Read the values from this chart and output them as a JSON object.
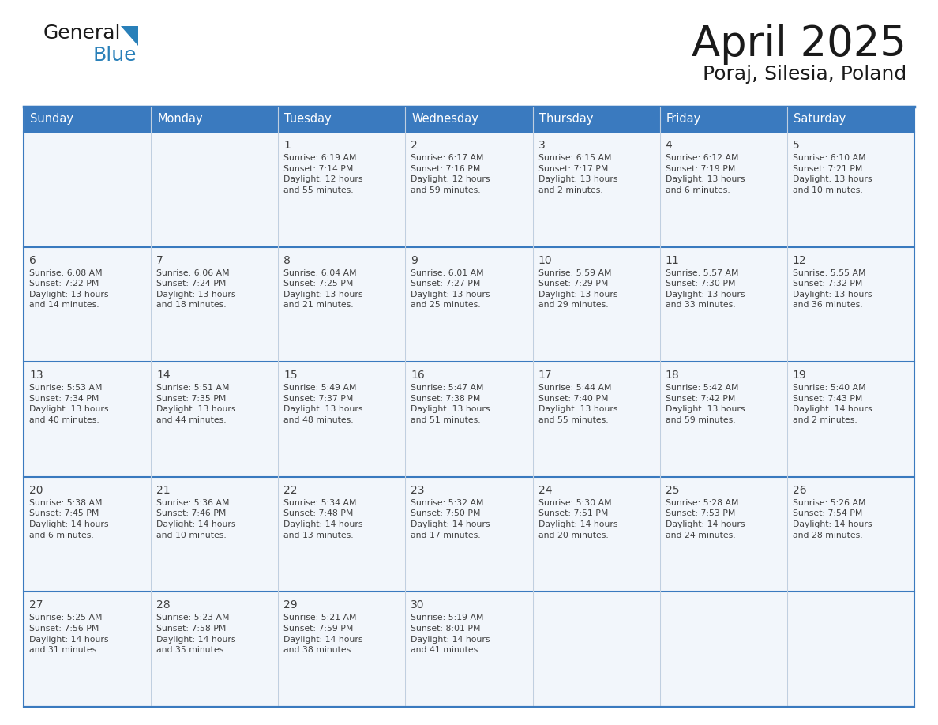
{
  "title": "April 2025",
  "subtitle": "Poraj, Silesia, Poland",
  "header_bg": "#3a7abf",
  "header_text_color": "#ffffff",
  "days_of_week": [
    "Sunday",
    "Monday",
    "Tuesday",
    "Wednesday",
    "Thursday",
    "Friday",
    "Saturday"
  ],
  "cell_bg": "#f2f6fb",
  "border_color": "#3a7abf",
  "text_color": "#404040",
  "calendar": [
    [
      {
        "day": "",
        "info": ""
      },
      {
        "day": "",
        "info": ""
      },
      {
        "day": "1",
        "info": "Sunrise: 6:19 AM\nSunset: 7:14 PM\nDaylight: 12 hours\nand 55 minutes."
      },
      {
        "day": "2",
        "info": "Sunrise: 6:17 AM\nSunset: 7:16 PM\nDaylight: 12 hours\nand 59 minutes."
      },
      {
        "day": "3",
        "info": "Sunrise: 6:15 AM\nSunset: 7:17 PM\nDaylight: 13 hours\nand 2 minutes."
      },
      {
        "day": "4",
        "info": "Sunrise: 6:12 AM\nSunset: 7:19 PM\nDaylight: 13 hours\nand 6 minutes."
      },
      {
        "day": "5",
        "info": "Sunrise: 6:10 AM\nSunset: 7:21 PM\nDaylight: 13 hours\nand 10 minutes."
      }
    ],
    [
      {
        "day": "6",
        "info": "Sunrise: 6:08 AM\nSunset: 7:22 PM\nDaylight: 13 hours\nand 14 minutes."
      },
      {
        "day": "7",
        "info": "Sunrise: 6:06 AM\nSunset: 7:24 PM\nDaylight: 13 hours\nand 18 minutes."
      },
      {
        "day": "8",
        "info": "Sunrise: 6:04 AM\nSunset: 7:25 PM\nDaylight: 13 hours\nand 21 minutes."
      },
      {
        "day": "9",
        "info": "Sunrise: 6:01 AM\nSunset: 7:27 PM\nDaylight: 13 hours\nand 25 minutes."
      },
      {
        "day": "10",
        "info": "Sunrise: 5:59 AM\nSunset: 7:29 PM\nDaylight: 13 hours\nand 29 minutes."
      },
      {
        "day": "11",
        "info": "Sunrise: 5:57 AM\nSunset: 7:30 PM\nDaylight: 13 hours\nand 33 minutes."
      },
      {
        "day": "12",
        "info": "Sunrise: 5:55 AM\nSunset: 7:32 PM\nDaylight: 13 hours\nand 36 minutes."
      }
    ],
    [
      {
        "day": "13",
        "info": "Sunrise: 5:53 AM\nSunset: 7:34 PM\nDaylight: 13 hours\nand 40 minutes."
      },
      {
        "day": "14",
        "info": "Sunrise: 5:51 AM\nSunset: 7:35 PM\nDaylight: 13 hours\nand 44 minutes."
      },
      {
        "day": "15",
        "info": "Sunrise: 5:49 AM\nSunset: 7:37 PM\nDaylight: 13 hours\nand 48 minutes."
      },
      {
        "day": "16",
        "info": "Sunrise: 5:47 AM\nSunset: 7:38 PM\nDaylight: 13 hours\nand 51 minutes."
      },
      {
        "day": "17",
        "info": "Sunrise: 5:44 AM\nSunset: 7:40 PM\nDaylight: 13 hours\nand 55 minutes."
      },
      {
        "day": "18",
        "info": "Sunrise: 5:42 AM\nSunset: 7:42 PM\nDaylight: 13 hours\nand 59 minutes."
      },
      {
        "day": "19",
        "info": "Sunrise: 5:40 AM\nSunset: 7:43 PM\nDaylight: 14 hours\nand 2 minutes."
      }
    ],
    [
      {
        "day": "20",
        "info": "Sunrise: 5:38 AM\nSunset: 7:45 PM\nDaylight: 14 hours\nand 6 minutes."
      },
      {
        "day": "21",
        "info": "Sunrise: 5:36 AM\nSunset: 7:46 PM\nDaylight: 14 hours\nand 10 minutes."
      },
      {
        "day": "22",
        "info": "Sunrise: 5:34 AM\nSunset: 7:48 PM\nDaylight: 14 hours\nand 13 minutes."
      },
      {
        "day": "23",
        "info": "Sunrise: 5:32 AM\nSunset: 7:50 PM\nDaylight: 14 hours\nand 17 minutes."
      },
      {
        "day": "24",
        "info": "Sunrise: 5:30 AM\nSunset: 7:51 PM\nDaylight: 14 hours\nand 20 minutes."
      },
      {
        "day": "25",
        "info": "Sunrise: 5:28 AM\nSunset: 7:53 PM\nDaylight: 14 hours\nand 24 minutes."
      },
      {
        "day": "26",
        "info": "Sunrise: 5:26 AM\nSunset: 7:54 PM\nDaylight: 14 hours\nand 28 minutes."
      }
    ],
    [
      {
        "day": "27",
        "info": "Sunrise: 5:25 AM\nSunset: 7:56 PM\nDaylight: 14 hours\nand 31 minutes."
      },
      {
        "day": "28",
        "info": "Sunrise: 5:23 AM\nSunset: 7:58 PM\nDaylight: 14 hours\nand 35 minutes."
      },
      {
        "day": "29",
        "info": "Sunrise: 5:21 AM\nSunset: 7:59 PM\nDaylight: 14 hours\nand 38 minutes."
      },
      {
        "day": "30",
        "info": "Sunrise: 5:19 AM\nSunset: 8:01 PM\nDaylight: 14 hours\nand 41 minutes."
      },
      {
        "day": "",
        "info": ""
      },
      {
        "day": "",
        "info": ""
      },
      {
        "day": "",
        "info": ""
      }
    ]
  ]
}
